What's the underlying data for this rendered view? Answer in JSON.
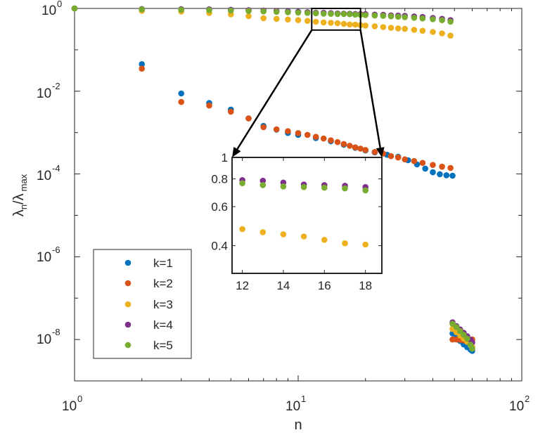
{
  "chart_data": {
    "type": "scatter",
    "xscale": "log",
    "yscale": "log",
    "xlim": [
      1,
      100
    ],
    "ylim": [
      1e-09,
      1
    ],
    "xlabel": "n",
    "ylabel": "λn/λ max",
    "ylabel_parts": {
      "lambda": "λ",
      "sub_n": "n",
      "slash": "/",
      "sub_max": "max"
    },
    "xticks": [
      {
        "base": "10",
        "exp": "0"
      },
      {
        "base": "10",
        "exp": "1"
      },
      {
        "base": "10",
        "exp": "2"
      }
    ],
    "yticks": [
      {
        "base": "10",
        "exp": "0"
      },
      {
        "base": "10",
        "exp": "-2"
      },
      {
        "base": "10",
        "exp": "-4"
      },
      {
        "base": "10",
        "exp": "-6"
      },
      {
        "base": "10",
        "exp": "-8"
      }
    ],
    "legend_position": "lower-left",
    "series": [
      {
        "name": "k=1",
        "color": "#0072BD",
        "x": [
          1,
          2,
          3,
          4,
          5,
          6,
          7,
          8,
          9,
          10,
          12,
          14,
          16,
          18,
          20,
          22,
          25,
          28,
          31,
          34,
          37,
          40,
          43,
          46,
          49,
          49,
          51,
          53,
          55,
          57,
          59,
          60
        ],
        "y": [
          1,
          0.045,
          0.0088,
          0.0052,
          0.0036,
          0.0022,
          0.00145,
          0.00118,
          0.00098,
          0.00088,
          0.00074,
          0.00062,
          0.00051,
          0.00043,
          0.00037,
          0.00033,
          0.00029,
          0.00026,
          0.000215,
          0.00017,
          0.000135,
          0.00011,
          9.85e-05,
          9.3e-05,
          9.1e-05,
          1.4e-08,
          1.12e-08,
          9.2e-09,
          7.6e-09,
          6.5e-09,
          5.7e-09,
          5.3e-09
        ]
      },
      {
        "name": "k=2",
        "color": "#D95319",
        "x": [
          1,
          2,
          3,
          4,
          5,
          6,
          7,
          8,
          9,
          10,
          11,
          12,
          13,
          14,
          15,
          16,
          17,
          18,
          19,
          20,
          22,
          24,
          26,
          28,
          30,
          33,
          36,
          40,
          44,
          48,
          49,
          51,
          53,
          55,
          57,
          59,
          60
        ],
        "y": [
          1,
          0.035,
          0.0055,
          0.0045,
          0.0032,
          0.0022,
          0.00135,
          0.0012,
          0.00108,
          0.00097,
          0.00088,
          0.00079,
          0.00072,
          0.00065,
          0.00059,
          0.00053,
          0.00048,
          0.00044,
          0.00041,
          0.00038,
          0.00034,
          0.00031,
          0.00027,
          0.00025,
          0.000225,
          0.000205,
          0.000185,
          0.000165,
          0.00015,
          0.00014,
          1e-08,
          1e-08,
          9.8e-09,
          9.5e-09,
          9.3e-09,
          9.5e-09,
          1e-08
        ]
      },
      {
        "name": "k=3",
        "color": "#EDB120",
        "x": [
          1,
          2,
          3,
          4,
          5,
          6,
          7,
          8,
          9,
          10,
          11,
          12,
          13,
          14,
          15,
          16,
          17,
          18,
          19,
          20,
          22,
          24,
          26,
          28,
          30,
          33,
          36,
          40,
          44,
          48,
          49,
          51,
          53,
          55,
          57,
          59,
          60
        ],
        "y": [
          1,
          0.88,
          0.84,
          0.78,
          0.72,
          0.65,
          0.58,
          0.56,
          0.54,
          0.52,
          0.5,
          0.475,
          0.46,
          0.45,
          0.44,
          0.425,
          0.41,
          0.405,
          0.395,
          0.385,
          0.37,
          0.355,
          0.34,
          0.33,
          0.32,
          0.305,
          0.29,
          0.27,
          0.25,
          0.22,
          1.8e-08,
          1.5e-08,
          1.25e-08,
          1.05e-08,
          8.8e-09,
          7.3e-09,
          6.8e-09
        ]
      },
      {
        "name": "k=4",
        "color": "#7E2F8E",
        "x": [
          1,
          2,
          3,
          4,
          5,
          6,
          7,
          8,
          9,
          10,
          11,
          12,
          13,
          14,
          15,
          16,
          17,
          18,
          19,
          20,
          22,
          24,
          26,
          28,
          30,
          33,
          36,
          40,
          44,
          48,
          49,
          51,
          53,
          55,
          57,
          59,
          60
        ],
        "y": [
          1,
          0.97,
          0.96,
          0.95,
          0.93,
          0.91,
          0.89,
          0.87,
          0.85,
          0.83,
          0.81,
          0.79,
          0.785,
          0.77,
          0.755,
          0.75,
          0.745,
          0.735,
          0.73,
          0.725,
          0.71,
          0.7,
          0.68,
          0.67,
          0.66,
          0.64,
          0.62,
          0.59,
          0.56,
          0.52,
          2.6e-08,
          2.1e-08,
          1.75e-08,
          1.45e-08,
          1.2e-08,
          9.8e-09,
          8.5e-09
        ]
      },
      {
        "name": "k=5",
        "color": "#77AC30",
        "x": [
          1,
          2,
          3,
          4,
          5,
          6,
          7,
          8,
          9,
          10,
          11,
          12,
          13,
          14,
          15,
          16,
          17,
          18,
          19,
          20,
          22,
          24,
          26,
          28,
          30,
          33,
          36,
          40,
          44,
          48,
          49,
          51,
          53,
          55,
          57,
          59,
          60
        ],
        "y": [
          1,
          0.95,
          0.93,
          0.91,
          0.89,
          0.87,
          0.85,
          0.83,
          0.81,
          0.79,
          0.775,
          0.765,
          0.75,
          0.74,
          0.735,
          0.73,
          0.725,
          0.71,
          0.7,
          0.69,
          0.675,
          0.66,
          0.645,
          0.63,
          0.615,
          0.595,
          0.575,
          0.55,
          0.52,
          0.48,
          2.4e-08,
          2e-08,
          1.6e-08,
          1.3e-08,
          1.05e-08,
          7.5e-09,
          6e-09
        ]
      }
    ],
    "inset": {
      "xlim": [
        11.5,
        18.8
      ],
      "ylim": [
        0.3,
        1
      ],
      "xticks": [
        12,
        14,
        16,
        18
      ],
      "yticks": [
        "1",
        "0.8",
        "0.6",
        "0.4"
      ],
      "ytick_values": [
        1,
        0.8,
        0.6,
        0.4
      ],
      "zoom_region": {
        "x": [
          11.5,
          19
        ],
        "y": [
          0.3,
          1
        ]
      },
      "series": [
        {
          "name": "k=3",
          "x": [
            12,
            13,
            14,
            15,
            16,
            17,
            18
          ],
          "y": [
            0.475,
            0.46,
            0.45,
            0.44,
            0.425,
            0.41,
            0.405
          ]
        },
        {
          "name": "k=4",
          "x": [
            12,
            13,
            14,
            15,
            16,
            17,
            18
          ],
          "y": [
            0.79,
            0.785,
            0.77,
            0.755,
            0.75,
            0.745,
            0.735
          ]
        },
        {
          "name": "k=5",
          "x": [
            12,
            13,
            14,
            15,
            16,
            17,
            18
          ],
          "y": [
            0.765,
            0.75,
            0.74,
            0.735,
            0.73,
            0.725,
            0.71
          ]
        }
      ]
    }
  }
}
